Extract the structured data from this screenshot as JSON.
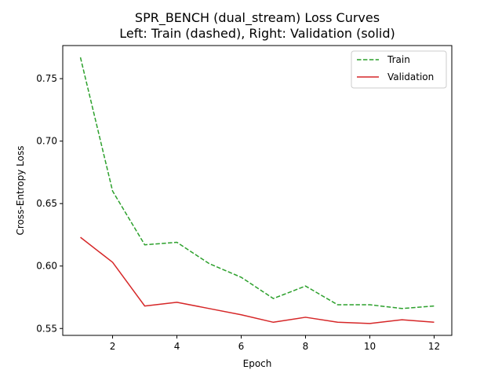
{
  "chart_data": {
    "type": "line",
    "title": "SPR_BENCH (dual_stream) Loss Curves",
    "subtitle": "Left: Train (dashed), Right: Validation (solid)",
    "xlabel": "Epoch",
    "ylabel": "Cross-Entropy Loss",
    "x": [
      1,
      2,
      3,
      4,
      5,
      6,
      7,
      8,
      9,
      10,
      11,
      12
    ],
    "xlim": [
      0.45,
      12.55
    ],
    "ylim": [
      0.5445,
      0.7765
    ],
    "xticks": [
      2,
      4,
      6,
      8,
      10,
      12
    ],
    "yticks": [
      0.55,
      0.6,
      0.65,
      0.7,
      0.75
    ],
    "xtick_labels": [
      "2",
      "4",
      "6",
      "8",
      "10",
      "12"
    ],
    "ytick_labels": [
      "0.55",
      "0.60",
      "0.65",
      "0.70",
      "0.75"
    ],
    "grid": false,
    "legend_position": "top-right",
    "series": [
      {
        "name": "Train",
        "style": "dashed",
        "color": "#2ca02c",
        "values": [
          0.767,
          0.66,
          0.617,
          0.619,
          0.602,
          0.591,
          0.574,
          0.584,
          0.569,
          0.569,
          0.566,
          0.568
        ]
      },
      {
        "name": "Validation",
        "style": "solid",
        "color": "#d62728",
        "values": [
          0.623,
          0.603,
          0.568,
          0.571,
          0.566,
          0.561,
          0.555,
          0.559,
          0.555,
          0.554,
          0.557,
          0.555
        ]
      }
    ]
  }
}
